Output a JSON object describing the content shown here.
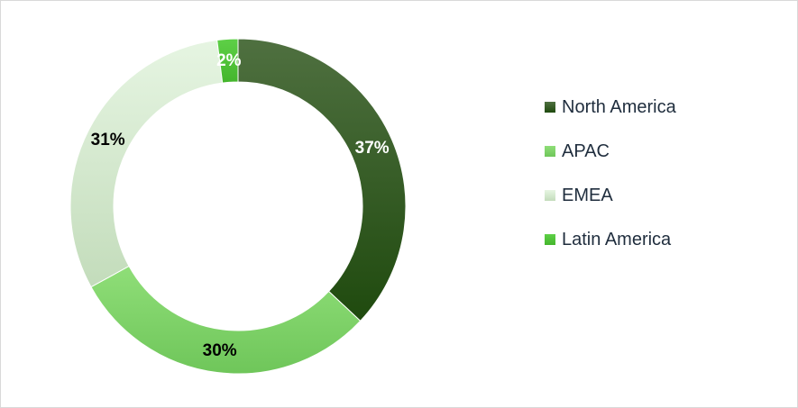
{
  "chart_data": {
    "type": "pie",
    "variant": "donut",
    "categories": [
      "North America",
      "APAC",
      "EMEA",
      "Latin America"
    ],
    "values": [
      37,
      30,
      31,
      2
    ],
    "data_labels": [
      "37%",
      "30%",
      "31%",
      "2%"
    ],
    "colors": [
      "#2f5a1f",
      "#7ed46a",
      "#cfe6c7",
      "#52c23a"
    ],
    "legend": {
      "position": "right",
      "entries": [
        "North America",
        "APAC",
        "EMEA",
        "Latin America"
      ]
    },
    "title": ""
  }
}
